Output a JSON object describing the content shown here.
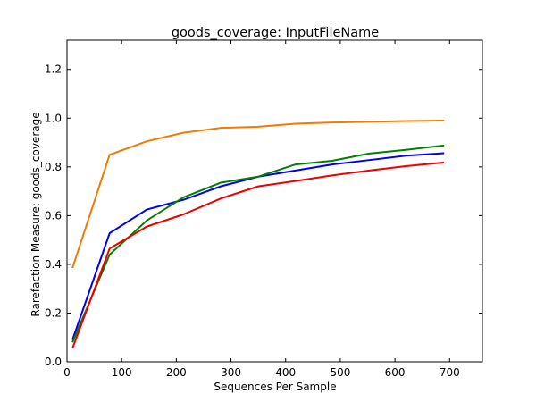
{
  "chart_data": {
    "type": "line",
    "title": "goods_coverage: InputFileName",
    "xlabel": "Sequences Per Sample",
    "ylabel": "Rarefaction Measure: goods_coverage",
    "xlim": [
      0,
      760
    ],
    "ylim": [
      0,
      1.32
    ],
    "x_ticks": [
      0,
      100,
      200,
      300,
      400,
      500,
      600,
      700
    ],
    "x_tick_labels": [
      "0",
      "100",
      "200",
      "300",
      "400",
      "500",
      "600",
      "700"
    ],
    "y_ticks": [
      0.0,
      0.2,
      0.4,
      0.6,
      0.8,
      1.0,
      1.2
    ],
    "y_tick_labels": [
      "0.0",
      "0.2",
      "0.4",
      "0.6",
      "0.8",
      "1.0",
      "1.2"
    ],
    "grid": false,
    "legend": "none",
    "x": [
      10,
      78,
      146,
      213,
      281,
      350,
      418,
      485,
      553,
      620,
      690
    ],
    "series": [
      {
        "color": "#f07b00",
        "values": [
          0.385,
          0.85,
          0.905,
          0.94,
          0.96,
          0.965,
          0.977,
          0.982,
          0.985,
          0.988,
          0.99
        ]
      },
      {
        "color": "#0000ee",
        "values": [
          0.09,
          0.528,
          0.625,
          0.665,
          0.72,
          0.76,
          0.785,
          0.81,
          0.828,
          0.846,
          0.856
        ]
      },
      {
        "color": "#008000",
        "values": [
          0.08,
          0.44,
          0.58,
          0.675,
          0.735,
          0.76,
          0.81,
          0.825,
          0.855,
          0.87,
          0.888
        ]
      },
      {
        "color": "#ee0000",
        "values": [
          0.055,
          0.465,
          0.555,
          0.605,
          0.67,
          0.72,
          0.742,
          0.765,
          0.785,
          0.803,
          0.818
        ]
      }
    ]
  }
}
